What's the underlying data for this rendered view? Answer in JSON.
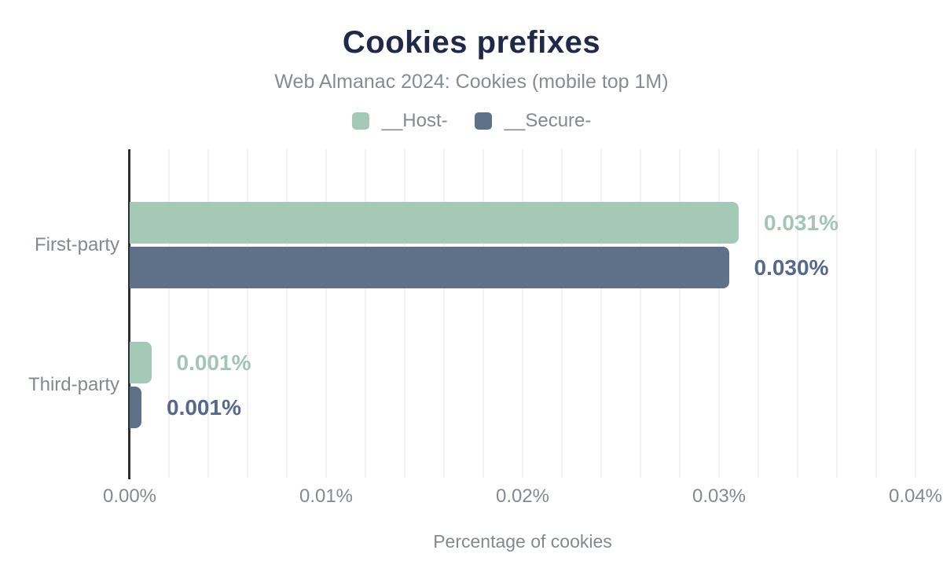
{
  "header": {
    "title": "Cookies prefixes",
    "subtitle": "Web Almanac 2024: Cookies (mobile top 1M)"
  },
  "colors": {
    "title_text": "#1e2a47",
    "muted_text": "#85898f",
    "grid_line": "#f0f1f1",
    "axis_line": "#2b2e33",
    "host_series": "#a5c9b7",
    "secure_series": "#5f7189",
    "host_label_text": "#a3c6b4",
    "secure_label_text": "#56698c"
  },
  "chart_data": {
    "type": "bar",
    "orientation": "horizontal",
    "title": "Cookies prefixes",
    "subtitle": "Web Almanac 2024: Cookies (mobile top 1M)",
    "categories": [
      "First-party",
      "Third-party"
    ],
    "series": [
      {
        "name": "__Host-",
        "color": "#a5c9b7",
        "label_color": "#a3c6b4",
        "values": [
          0.031,
          0.001
        ],
        "data_labels": [
          "0.031%",
          "0.001%"
        ],
        "bar_values_precise": [
          0.031,
          0.0011
        ]
      },
      {
        "name": "__Secure-",
        "color": "#5f7189",
        "label_color": "#56698c",
        "values": [
          0.03,
          0.001
        ],
        "data_labels": [
          "0.030%",
          "0.001%"
        ],
        "bar_values_precise": [
          0.0305,
          0.0006
        ]
      }
    ],
    "xlabel": "Percentage of cookies",
    "ylabel": "",
    "xlim": [
      0,
      0.04
    ],
    "x_ticks": [
      "0.00%",
      "0.01%",
      "0.02%",
      "0.03%",
      "0.04%"
    ],
    "x_tick_values": [
      0,
      0.01,
      0.02,
      0.03,
      0.04
    ],
    "minor_grid_step": 0.002,
    "grid": "vertical minor gridlines on",
    "legend_position": "top"
  }
}
